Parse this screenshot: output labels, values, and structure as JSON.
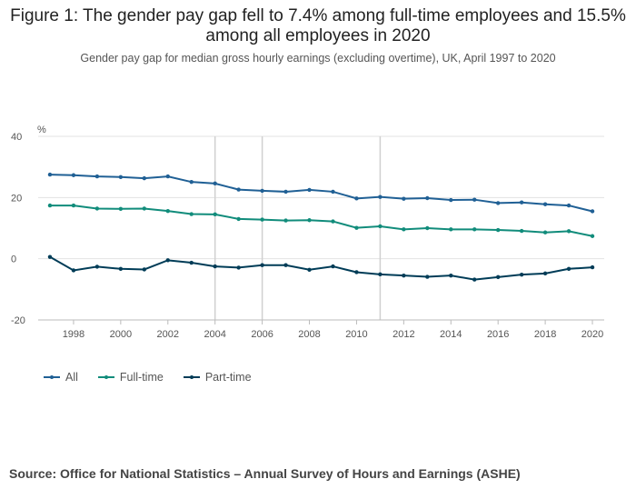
{
  "title": "Figure 1: The gender pay gap fell to 7.4% among full-time employees and 15.5% among all employees in 2020",
  "subtitle": "Gender pay gap for median gross hourly earnings (excluding overtime), UK, April 1997 to 2020",
  "source": "Source: Office for National Statistics – Annual Survey of Hours and Earnings (ASHE)",
  "chart_data": {
    "type": "line",
    "title": "Figure 1: The gender pay gap fell to 7.4% among full-time employees and 15.5% among all employees in 2020",
    "subtitle": "Gender pay gap for median gross hourly earnings (excluding overtime), UK, April 1997 to 2020",
    "ylabel": "%",
    "ylim": [
      -20,
      40
    ],
    "yticks": [
      -20,
      0,
      20,
      40
    ],
    "xlim": [
      1996.5,
      2020.5
    ],
    "xticks": [
      1998,
      2000,
      2002,
      2004,
      2006,
      2008,
      2010,
      2012,
      2014,
      2016,
      2018,
      2020
    ],
    "vertical_lines": [
      2004,
      2006,
      2011
    ],
    "grid": true,
    "legend_position": "bottom-left",
    "x": [
      1997,
      1998,
      1999,
      2000,
      2001,
      2002,
      2003,
      2004,
      2005,
      2006,
      2007,
      2008,
      2009,
      2010,
      2011,
      2012,
      2013,
      2014,
      2015,
      2016,
      2017,
      2018,
      2019,
      2020
    ],
    "series": [
      {
        "name": "All",
        "color": "#206095",
        "values": [
          27.5,
          27.3,
          26.9,
          26.7,
          26.3,
          26.9,
          25.1,
          24.6,
          22.6,
          22.2,
          21.9,
          22.5,
          21.9,
          19.7,
          20.2,
          19.6,
          19.8,
          19.2,
          19.3,
          18.2,
          18.4,
          17.8,
          17.4,
          15.5
        ]
      },
      {
        "name": "Full-time",
        "color": "#118c7b",
        "values": [
          17.4,
          17.4,
          16.4,
          16.3,
          16.4,
          15.6,
          14.6,
          14.5,
          13.0,
          12.8,
          12.5,
          12.6,
          12.2,
          10.1,
          10.6,
          9.6,
          10.0,
          9.6,
          9.6,
          9.4,
          9.1,
          8.6,
          9.0,
          7.4
        ]
      },
      {
        "name": "Part-time",
        "color": "#003c57",
        "values": [
          0.6,
          -3.8,
          -2.6,
          -3.3,
          -3.5,
          -0.5,
          -1.3,
          -2.5,
          -2.9,
          -2.1,
          -2.1,
          -3.6,
          -2.5,
          -4.4,
          -5.1,
          -5.5,
          -5.9,
          -5.5,
          -6.8,
          -6.0,
          -5.2,
          -4.8,
          -3.3,
          -2.8
        ]
      }
    ]
  }
}
